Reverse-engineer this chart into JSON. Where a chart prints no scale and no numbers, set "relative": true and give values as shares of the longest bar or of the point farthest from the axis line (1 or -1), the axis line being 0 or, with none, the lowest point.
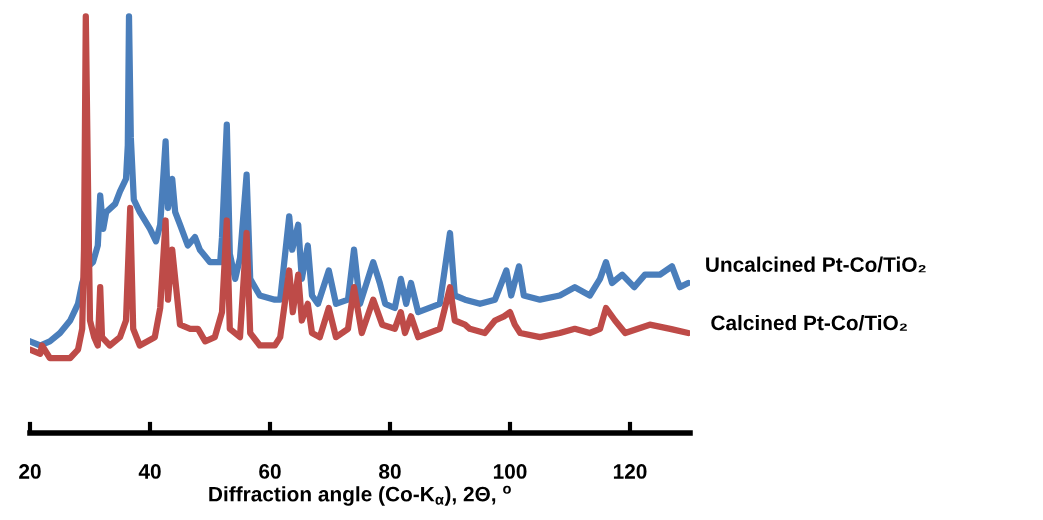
{
  "chart_data": {
    "type": "line",
    "relative": true,
    "xlabel": "Diffraction angle (Co-K$_{α}$), 2Θ, $^{o}$",
    "xlim": [
      20,
      130
    ],
    "xticks": [
      20,
      40,
      60,
      80,
      100,
      120
    ],
    "grid": false,
    "legend": false,
    "marker": "none",
    "line_style": "solid",
    "series": [
      {
        "name": "Uncalcined Pt-Co/TiO₂",
        "color": "#4a7ebb",
        "x": [
          20,
          21.7,
          23.3,
          25,
          26.7,
          28,
          28.7,
          29.7,
          30.5,
          31.3,
          31.7,
          32.2,
          32.7,
          34.2,
          35,
          36,
          36.3,
          36.5,
          36.8,
          37.3,
          38.3,
          40,
          41,
          41.7,
          42.6,
          43,
          43.7,
          44.2,
          45,
          46.3,
          47.5,
          48.3,
          50,
          51.7,
          52,
          52.8,
          53.3,
          54.2,
          55,
          56.1,
          56.7,
          58.3,
          60.8,
          61.7,
          63.2,
          63.7,
          64.7,
          65.3,
          66.3,
          67,
          68,
          69.8,
          71,
          73,
          74,
          75,
          77.2,
          78.3,
          79.2,
          80.8,
          81.8,
          82.7,
          83.5,
          84.7,
          88.3,
          90,
          90.8,
          92.5,
          95,
          97.5,
          99.4,
          100.2,
          101.5,
          102.3,
          105,
          108.3,
          110.8,
          113.3,
          115,
          116,
          117,
          118.7,
          120.7,
          122.5,
          125,
          127,
          128.3,
          129.7
        ],
        "values": [
          0.22,
          0.21,
          0.22,
          0.24,
          0.27,
          0.31,
          0.36,
          0.4,
          0.41,
          0.45,
          0.57,
          0.49,
          0.53,
          0.55,
          0.58,
          0.61,
          0.69,
          1.0,
          0.71,
          0.56,
          0.53,
          0.49,
          0.46,
          0.5,
          0.7,
          0.54,
          0.61,
          0.53,
          0.5,
          0.45,
          0.47,
          0.44,
          0.41,
          0.41,
          0.47,
          0.74,
          0.43,
          0.37,
          0.42,
          0.62,
          0.37,
          0.33,
          0.32,
          0.32,
          0.52,
          0.44,
          0.5,
          0.37,
          0.45,
          0.33,
          0.31,
          0.39,
          0.31,
          0.32,
          0.44,
          0.31,
          0.41,
          0.36,
          0.31,
          0.3,
          0.37,
          0.31,
          0.36,
          0.29,
          0.31,
          0.48,
          0.33,
          0.32,
          0.31,
          0.32,
          0.39,
          0.33,
          0.4,
          0.33,
          0.32,
          0.33,
          0.35,
          0.33,
          0.37,
          0.41,
          0.36,
          0.38,
          0.35,
          0.38,
          0.38,
          0.4,
          0.35,
          0.36
        ]
      },
      {
        "name": "Calcined Pt-Co/TiO₂",
        "color": "#be4b48",
        "x": [
          20,
          21.7,
          22,
          23.3,
          25,
          26.7,
          28,
          28.7,
          29,
          29.3,
          29.7,
          30,
          30.7,
          31.3,
          31.7,
          32,
          33.3,
          35,
          36,
          36.7,
          37.2,
          38.3,
          40.8,
          41.7,
          42.6,
          43,
          43.7,
          44.2,
          45,
          46.7,
          48,
          49.2,
          50.8,
          52,
          52.8,
          53.3,
          55,
          56.1,
          56.7,
          58.3,
          60.8,
          61.7,
          63.2,
          63.8,
          64.7,
          65.3,
          66.3,
          67,
          68.3,
          69.8,
          71,
          73,
          74,
          75.3,
          77.2,
          78.7,
          80.8,
          81.8,
          82.5,
          83.5,
          84.7,
          88.3,
          90,
          90.8,
          92.5,
          93.3,
          95.8,
          97.5,
          99,
          100,
          100.8,
          101.7,
          105,
          108.3,
          110.8,
          113.3,
          115,
          116,
          117.5,
          119.2,
          123.3,
          126.7,
          129.7
        ],
        "values": [
          0.2,
          0.19,
          0.21,
          0.18,
          0.18,
          0.18,
          0.2,
          0.25,
          0.44,
          1.0,
          0.56,
          0.27,
          0.23,
          0.21,
          0.35,
          0.23,
          0.21,
          0.23,
          0.27,
          0.54,
          0.25,
          0.21,
          0.23,
          0.3,
          0.51,
          0.32,
          0.44,
          0.37,
          0.26,
          0.25,
          0.25,
          0.22,
          0.23,
          0.29,
          0.51,
          0.25,
          0.23,
          0.48,
          0.24,
          0.21,
          0.21,
          0.23,
          0.39,
          0.29,
          0.38,
          0.27,
          0.31,
          0.24,
          0.23,
          0.3,
          0.23,
          0.25,
          0.35,
          0.24,
          0.32,
          0.26,
          0.25,
          0.29,
          0.24,
          0.28,
          0.23,
          0.25,
          0.35,
          0.27,
          0.26,
          0.25,
          0.24,
          0.27,
          0.28,
          0.29,
          0.26,
          0.24,
          0.23,
          0.24,
          0.25,
          0.24,
          0.25,
          0.3,
          0.27,
          0.24,
          0.26,
          0.25,
          0.24
        ]
      }
    ]
  }
}
